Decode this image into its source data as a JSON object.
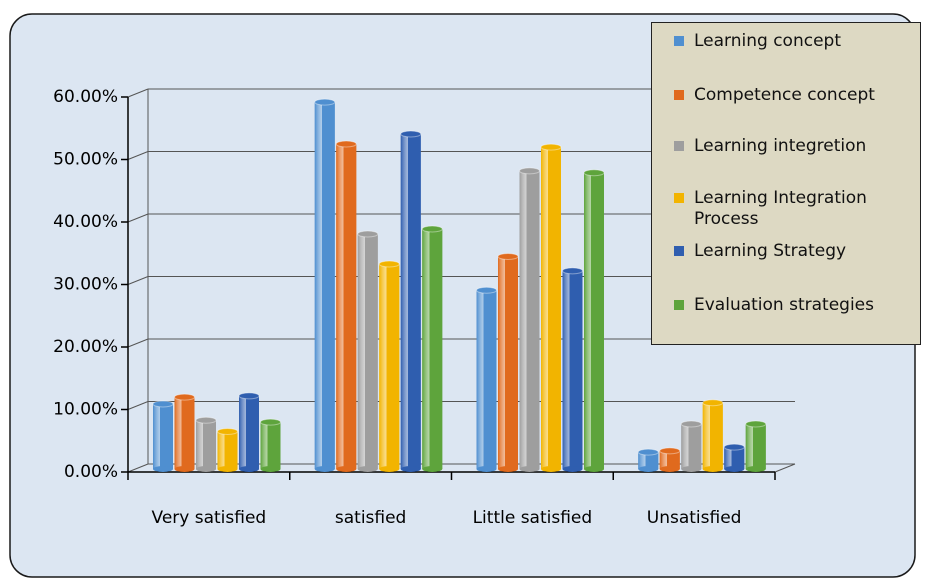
{
  "chart_data": {
    "type": "bar",
    "categories": [
      "Very satisfied",
      "satisfied",
      "Little satisfied",
      "Unsatisfied"
    ],
    "series": [
      {
        "name": "Learning concept",
        "color": "#4f8fd0",
        "values": [
          10.4,
          58.7,
          28.6,
          2.7
        ]
      },
      {
        "name": "Competence concept",
        "color": "#e06a1e",
        "values": [
          11.5,
          52,
          34,
          2.9
        ]
      },
      {
        "name": "Learning integretion",
        "color": "#9e9e9e",
        "values": [
          7.8,
          37.6,
          47.7,
          7.2
        ]
      },
      {
        "name": "Learning Integration Process",
        "color": "#f2b400",
        "values": [
          6,
          32.8,
          51.5,
          10.6
        ]
      },
      {
        "name": "Learning Strategy",
        "color": "#2f5eaf",
        "values": [
          11.7,
          53.6,
          31.7,
          3.5
        ]
      },
      {
        "name": "Evaluation strategies",
        "color": "#5ea43c",
        "values": [
          7.5,
          38.4,
          47.4,
          7.2
        ]
      }
    ],
    "ylim": [
      0,
      60
    ],
    "yticks": [
      {
        "value": 0,
        "label": "0.00%"
      },
      {
        "value": 10,
        "label": "10.00%"
      },
      {
        "value": 20,
        "label": "20.00%"
      },
      {
        "value": 30,
        "label": "30.00%"
      },
      {
        "value": 40,
        "label": "40.00%"
      },
      {
        "value": 50,
        "label": "50.00%"
      },
      {
        "value": 60,
        "label": "60.00%"
      }
    ],
    "grid": true
  }
}
